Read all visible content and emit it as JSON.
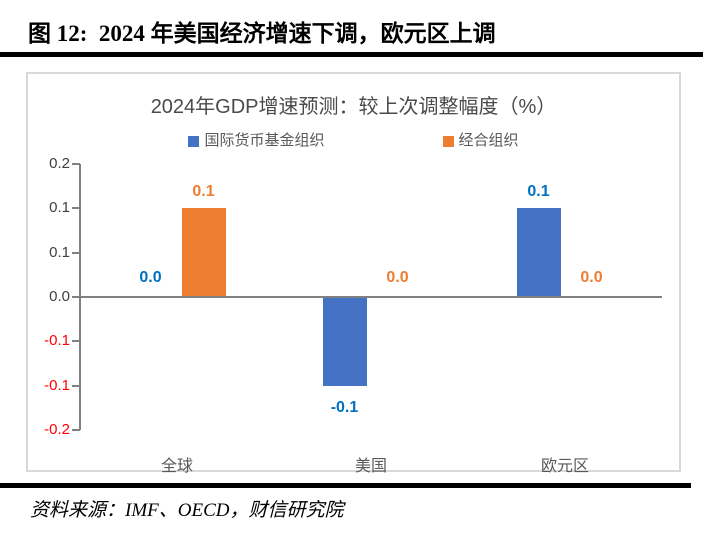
{
  "doc": {
    "title": "图 12:  2024 年美国经济增速下调，欧元区上调"
  },
  "source": {
    "text": "资料来源：IMF、OECD，财信研究院"
  },
  "chart_data": {
    "type": "bar",
    "title": "2024年GDP增速预测：较上次调整幅度（%）",
    "categories": [
      "全球",
      "美国",
      "欧元区"
    ],
    "series": [
      {
        "name": "国际货币基金组织",
        "color": "#4472C4",
        "label_color": "#0070C0",
        "values": [
          0.0,
          -0.1,
          0.1
        ],
        "labels": [
          "0.0",
          "-0.1",
          "0.1"
        ]
      },
      {
        "name": "经合组织",
        "color": "#ED7D31",
        "label_color": "#ED7D31",
        "values": [
          0.1,
          0.0,
          0.0
        ],
        "labels": [
          "0.1",
          "0.0",
          "0.0"
        ]
      }
    ],
    "ylim": [
      -0.15,
      0.15
    ],
    "yticks": [
      {
        "value": 0.15,
        "label": "0.2",
        "color": "#404040"
      },
      {
        "value": 0.1,
        "label": "0.1",
        "color": "#404040"
      },
      {
        "value": 0.05,
        "label": "0.1",
        "color": "#404040"
      },
      {
        "value": 0.0,
        "label": "0.0",
        "color": "#404040"
      },
      {
        "value": -0.05,
        "label": "-0.1",
        "color": "#FF0000"
      },
      {
        "value": -0.1,
        "label": "-0.1",
        "color": "#FF0000"
      },
      {
        "value": -0.15,
        "label": "-0.2",
        "color": "#FF0000"
      }
    ],
    "legend_position": "top",
    "grid": false,
    "axis_color": "#808080"
  }
}
